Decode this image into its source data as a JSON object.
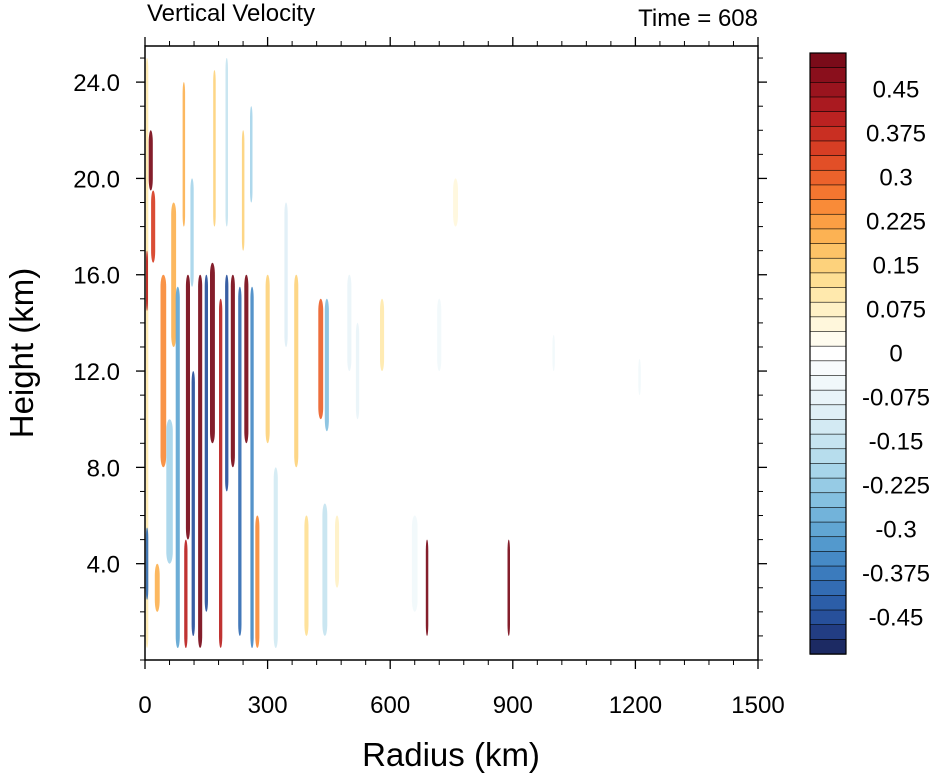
{
  "chart_data": {
    "type": "heatmap",
    "title": "Vertical Velocity",
    "subtitle": "Time = 608",
    "xlabel": "Radius (km)",
    "ylabel": "Height (km)",
    "xlim": [
      0,
      1500
    ],
    "ylim": [
      0,
      25.5
    ],
    "x_ticks": [
      0,
      300,
      600,
      900,
      1200,
      1500
    ],
    "x_tick_labels": [
      "0",
      "300",
      "600",
      "900",
      "1200",
      "1500"
    ],
    "y_ticks": [
      4,
      8,
      12,
      16,
      20,
      24
    ],
    "y_tick_labels": [
      "4.0",
      "8.0",
      "12.0",
      "16.0",
      "20.0",
      "24.0"
    ],
    "colorbar": {
      "levels": [
        -0.5,
        -0.475,
        -0.45,
        -0.425,
        -0.4,
        -0.375,
        -0.35,
        -0.325,
        -0.3,
        -0.275,
        -0.25,
        -0.225,
        -0.2,
        -0.175,
        -0.15,
        -0.125,
        -0.1,
        -0.075,
        -0.05,
        -0.025,
        0,
        0.025,
        0.05,
        0.075,
        0.1,
        0.125,
        0.15,
        0.175,
        0.2,
        0.225,
        0.25,
        0.275,
        0.3,
        0.325,
        0.35,
        0.375,
        0.4,
        0.425,
        0.45,
        0.475,
        0.5
      ],
      "colors": [
        "#1c2a63",
        "#223d83",
        "#27509b",
        "#2c5ea8",
        "#336cb3",
        "#3b7bbd",
        "#468ac6",
        "#5399cd",
        "#61a6d3",
        "#72b3da",
        "#84c0e0",
        "#96cbe5",
        "#a7d5ea",
        "#b7dded",
        "#c6e4f0",
        "#d3eaf3",
        "#dfeff6",
        "#e9f4f9",
        "#f1f8fb",
        "#f8fbfd",
        "#ffffff",
        "#fffcef",
        "#fff7dc",
        "#fff1c6",
        "#ffe9ad",
        "#fedf94",
        "#fdd27c",
        "#fdc367",
        "#fcb253",
        "#fb9f44",
        "#f98b38",
        "#f47630",
        "#ec622b",
        "#e24f27",
        "#d73e24",
        "#c92f22",
        "#bb2221",
        "#aa1a20",
        "#9a141e",
        "#8a0f1c",
        "#7a0b19"
      ],
      "tick_values": [
        -0.45,
        -0.375,
        -0.3,
        -0.225,
        -0.15,
        -0.075,
        0,
        0.075,
        0.15,
        0.225,
        0.3,
        0.375,
        0.45
      ],
      "tick_labels": [
        "-0.45",
        "-0.375",
        "-0.3",
        "-0.225",
        "-0.15",
        "-0.075",
        "0",
        "0.075",
        "0.15",
        "0.225",
        "0.3",
        "0.375",
        "0.45"
      ]
    },
    "features": [
      {
        "r": 5,
        "z0": 0.5,
        "z1": 25,
        "w": 6,
        "v": 0.1
      },
      {
        "r": 14,
        "z0": 19.5,
        "z1": 22,
        "w": 10,
        "v": 0.5
      },
      {
        "r": 20,
        "z0": 16.5,
        "z1": 19.5,
        "w": 10,
        "v": 0.35
      },
      {
        "r": 5,
        "z0": 14.5,
        "z1": 17,
        "w": 5,
        "v": 0.4
      },
      {
        "r": 5,
        "z0": 2.5,
        "z1": 5.5,
        "w": 6,
        "v": -0.4
      },
      {
        "r": 30,
        "z0": 2,
        "z1": 4,
        "w": 12,
        "v": 0.2
      },
      {
        "r": 45,
        "z0": 8,
        "z1": 16,
        "w": 14,
        "v": 0.25
      },
      {
        "r": 60,
        "z0": 4,
        "z1": 10,
        "w": 16,
        "v": -0.2
      },
      {
        "r": 70,
        "z0": 13,
        "z1": 19,
        "w": 12,
        "v": 0.2
      },
      {
        "r": 80,
        "z0": 0.5,
        "z1": 15.5,
        "w": 10,
        "v": -0.3
      },
      {
        "r": 100,
        "z0": 0.5,
        "z1": 5,
        "w": 8,
        "v": 0.4
      },
      {
        "r": 105,
        "z0": 5,
        "z1": 16,
        "w": 10,
        "v": 0.5
      },
      {
        "r": 118,
        "z0": 1,
        "z1": 12,
        "w": 8,
        "v": -0.45
      },
      {
        "r": 135,
        "z0": 0.5,
        "z1": 16,
        "w": 10,
        "v": 0.5
      },
      {
        "r": 150,
        "z0": 2,
        "z1": 16,
        "w": 8,
        "v": -0.45
      },
      {
        "r": 165,
        "z0": 9,
        "z1": 16.5,
        "w": 12,
        "v": 0.5
      },
      {
        "r": 185,
        "z0": 0.5,
        "z1": 15,
        "w": 8,
        "v": 0.4
      },
      {
        "r": 200,
        "z0": 7,
        "z1": 16,
        "w": 8,
        "v": -0.45
      },
      {
        "r": 215,
        "z0": 8,
        "z1": 16,
        "w": 10,
        "v": 0.5
      },
      {
        "r": 232,
        "z0": 1,
        "z1": 15.5,
        "w": 8,
        "v": -0.4
      },
      {
        "r": 248,
        "z0": 9,
        "z1": 16,
        "w": 10,
        "v": 0.5
      },
      {
        "r": 262,
        "z0": 0.5,
        "z1": 15.5,
        "w": 8,
        "v": -0.35
      },
      {
        "r": 275,
        "z0": 0.5,
        "z1": 6,
        "w": 10,
        "v": 0.25
      },
      {
        "r": 95,
        "z0": 18,
        "z1": 24,
        "w": 6,
        "v": 0.2
      },
      {
        "r": 115,
        "z0": 15.5,
        "z1": 20,
        "w": 8,
        "v": -0.2
      },
      {
        "r": 170,
        "z0": 18,
        "z1": 24.5,
        "w": 6,
        "v": 0.15
      },
      {
        "r": 200,
        "z0": 18,
        "z1": 25,
        "w": 6,
        "v": -0.15
      },
      {
        "r": 240,
        "z0": 17,
        "z1": 22,
        "w": 6,
        "v": 0.15
      },
      {
        "r": 260,
        "z0": 19,
        "z1": 23,
        "w": 6,
        "v": -0.2
      },
      {
        "r": 300,
        "z0": 9,
        "z1": 16,
        "w": 10,
        "v": 0.15
      },
      {
        "r": 320,
        "z0": 0.5,
        "z1": 8,
        "w": 10,
        "v": -0.12
      },
      {
        "r": 345,
        "z0": 13,
        "z1": 19,
        "w": 8,
        "v": -0.1
      },
      {
        "r": 370,
        "z0": 8,
        "z1": 16,
        "w": 10,
        "v": 0.15
      },
      {
        "r": 395,
        "z0": 1,
        "z1": 6,
        "w": 10,
        "v": 0.12
      },
      {
        "r": 430,
        "z0": 10,
        "z1": 15,
        "w": 12,
        "v": 0.3
      },
      {
        "r": 445,
        "z0": 9.5,
        "z1": 15,
        "w": 10,
        "v": -0.25
      },
      {
        "r": 440,
        "z0": 1,
        "z1": 6.5,
        "w": 12,
        "v": -0.15
      },
      {
        "r": 470,
        "z0": 3,
        "z1": 6,
        "w": 10,
        "v": 0.08
      },
      {
        "r": 500,
        "z0": 12,
        "z1": 16,
        "w": 10,
        "v": -0.08
      },
      {
        "r": 520,
        "z0": 10,
        "z1": 14,
        "w": 8,
        "v": -0.07
      },
      {
        "r": 580,
        "z0": 12,
        "z1": 15,
        "w": 10,
        "v": 0.1
      },
      {
        "r": 720,
        "z0": 12,
        "z1": 15,
        "w": 10,
        "v": -0.06
      },
      {
        "r": 690,
        "z0": 1,
        "z1": 5,
        "w": 6,
        "v": 0.5
      },
      {
        "r": 890,
        "z0": 1,
        "z1": 5,
        "w": 6,
        "v": 0.5
      },
      {
        "r": 660,
        "z0": 2,
        "z1": 6,
        "w": 14,
        "v": -0.06
      },
      {
        "r": 760,
        "z0": 18,
        "z1": 20,
        "w": 12,
        "v": 0.06
      },
      {
        "r": 1000,
        "z0": 12,
        "z1": 13.5,
        "w": 6,
        "v": -0.06
      },
      {
        "r": 1210,
        "z0": 11,
        "z1": 12.5,
        "w": 6,
        "v": -0.05
      }
    ]
  }
}
